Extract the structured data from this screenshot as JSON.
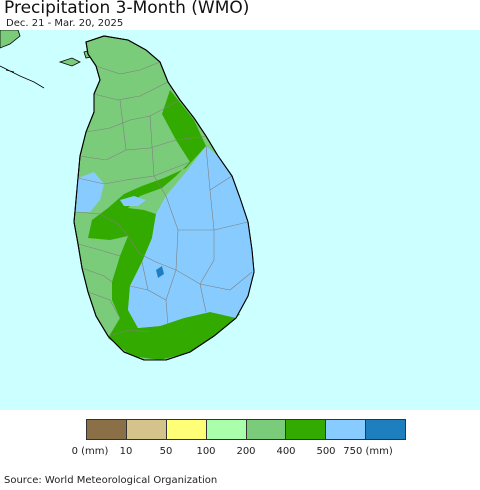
{
  "header": {
    "title": "Precipitation 3-Month (WMO)",
    "subtitle": "Dec. 21 - Mar. 20, 2025"
  },
  "map": {
    "ocean_color": "#ccffff",
    "district_line_color": "#808080",
    "coast_color": "#000000"
  },
  "legend": {
    "colors": [
      "#8b6f47",
      "#d4c48c",
      "#ffff77",
      "#aaffaa",
      "#7acc7a",
      "#33aa00",
      "#88ccff",
      "#1e7fbf"
    ],
    "labels": [
      "0 (mm)",
      "10",
      "50",
      "100",
      "200",
      "400",
      "500",
      "750 (mm)"
    ]
  },
  "footer": {
    "source": "Source: World Meteorological Organization"
  }
}
